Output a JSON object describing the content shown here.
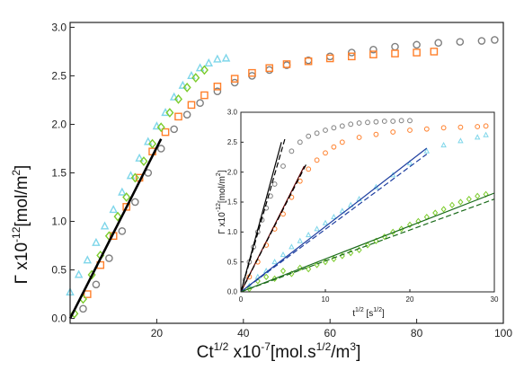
{
  "chart_data": {
    "main": {
      "type": "scatter",
      "xlim": [
        0,
        100
      ],
      "ylim": [
        -0.05,
        3.05
      ],
      "xticks": [
        20,
        40,
        60,
        80,
        100
      ],
      "yticks": [
        0.0,
        0.5,
        1.0,
        1.5,
        2.0,
        2.5,
        3.0
      ],
      "xlabel": {
        "base": "Ct",
        "sup1": "1/2",
        "mid": " x10",
        "sup2": "-7",
        "tail": "[mol.s",
        "sup3": "1/2",
        "end": "/m",
        "sup4": "3",
        "close": "]"
      },
      "ylabel": {
        "base": "Γ x10",
        "sup1": "-12",
        "mid": "[mol/m",
        "sup2": "2",
        "close": "]"
      },
      "series": [
        {
          "color": "#7f7f7f",
          "marker": "circle",
          "x": [
            3,
            6,
            9,
            12,
            15,
            18,
            21,
            24,
            27,
            30,
            34,
            38,
            42,
            46,
            50,
            55,
            60,
            65,
            70,
            75,
            80,
            85,
            90,
            95,
            98
          ],
          "y": [
            0.1,
            0.35,
            0.62,
            0.9,
            1.2,
            1.5,
            1.75,
            1.95,
            2.1,
            2.22,
            2.34,
            2.43,
            2.5,
            2.56,
            2.61,
            2.66,
            2.7,
            2.74,
            2.77,
            2.8,
            2.82,
            2.84,
            2.85,
            2.86,
            2.87
          ]
        },
        {
          "color": "#ff7f2a",
          "marker": "square",
          "x": [
            4,
            7,
            10,
            13,
            16,
            19,
            22,
            25,
            28,
            31,
            34,
            38,
            42,
            46,
            50,
            55,
            60,
            65,
            70,
            75,
            80,
            84
          ],
          "y": [
            0.25,
            0.55,
            0.85,
            1.15,
            1.45,
            1.72,
            1.92,
            2.08,
            2.2,
            2.3,
            2.39,
            2.47,
            2.53,
            2.58,
            2.62,
            2.65,
            2.68,
            2.7,
            2.72,
            2.73,
            2.74,
            2.75
          ]
        },
        {
          "color": "#7fd6ea",
          "marker": "triangle",
          "x": [
            0,
            2,
            4,
            6,
            8,
            10,
            12,
            14,
            16,
            18,
            20,
            22,
            24,
            26,
            28,
            30,
            32,
            34,
            36
          ],
          "y": [
            0.27,
            0.45,
            0.6,
            0.78,
            0.95,
            1.12,
            1.3,
            1.47,
            1.65,
            1.82,
            1.98,
            2.12,
            2.28,
            2.4,
            2.5,
            2.58,
            2.63,
            2.67,
            2.68
          ]
        },
        {
          "color": "#7ccc2c",
          "marker": "diamond",
          "x": [
            1,
            3,
            5,
            7,
            9,
            11,
            13,
            15,
            17,
            19,
            21,
            23,
            25,
            27,
            29,
            31
          ],
          "y": [
            0.05,
            0.2,
            0.45,
            0.65,
            0.85,
            1.05,
            1.25,
            1.45,
            1.62,
            1.8,
            1.97,
            2.12,
            2.26,
            2.38,
            2.48,
            2.56
          ]
        }
      ],
      "fit_line": {
        "color": "#000000",
        "x": [
          0,
          21
        ],
        "y": [
          0.0,
          1.85
        ]
      }
    },
    "inset": {
      "type": "scatter",
      "xlim": [
        0,
        30
      ],
      "ylim": [
        0,
        3.0
      ],
      "xticks": [
        0,
        10,
        20,
        30
      ],
      "yticks": [
        0.0,
        0.5,
        1.0,
        1.5,
        2.0,
        2.5,
        3.0
      ],
      "xlabel": {
        "base": "t",
        "sup1": "1/2",
        "mid": " [s",
        "sup2": "1/2",
        "close": "]"
      },
      "ylabel": {
        "base": "Γ x10",
        "sup1": "-12",
        "mid": "[mol/m",
        "sup2": "2",
        "close": "]"
      },
      "series": [
        {
          "color": "#7f7f7f",
          "marker": "circle",
          "x": [
            0.5,
            1,
            1.5,
            2,
            2.5,
            3,
            3.5,
            4,
            5,
            6,
            7,
            8,
            9,
            10,
            11,
            12,
            13,
            14,
            15,
            16,
            17,
            18,
            19,
            20
          ],
          "y": [
            0.2,
            0.5,
            0.75,
            1.0,
            1.2,
            1.4,
            1.6,
            1.8,
            2.1,
            2.35,
            2.5,
            2.6,
            2.65,
            2.7,
            2.74,
            2.77,
            2.8,
            2.82,
            2.83,
            2.84,
            2.85,
            2.85,
            2.86,
            2.86
          ]
        },
        {
          "color": "#ff7f2a",
          "marker": "circle",
          "x": [
            1,
            2,
            3,
            4,
            5,
            6,
            7,
            8,
            9,
            10,
            11,
            12,
            14,
            16,
            18,
            20,
            22,
            24,
            26,
            28,
            29
          ],
          "y": [
            0.25,
            0.5,
            0.78,
            1.05,
            1.3,
            1.58,
            1.85,
            2.05,
            2.2,
            2.32,
            2.42,
            2.5,
            2.58,
            2.63,
            2.67,
            2.7,
            2.72,
            2.74,
            2.75,
            2.76,
            2.77
          ]
        },
        {
          "color": "#7fd6ea",
          "marker": "triangle",
          "x": [
            1,
            2,
            3,
            4,
            5,
            6,
            7,
            8,
            9,
            10,
            11,
            12,
            13,
            14,
            16,
            18,
            20,
            22,
            24,
            26,
            28,
            29
          ],
          "y": [
            0.1,
            0.25,
            0.35,
            0.5,
            0.62,
            0.75,
            0.85,
            0.95,
            1.05,
            1.15,
            1.25,
            1.35,
            1.45,
            1.55,
            1.75,
            1.95,
            2.15,
            2.35,
            2.45,
            2.52,
            2.58,
            2.62
          ]
        },
        {
          "color": "#7ccc2c",
          "marker": "diamond",
          "x": [
            1,
            2,
            3,
            4,
            5,
            6,
            7,
            8,
            9,
            10,
            11,
            12,
            13,
            14,
            15,
            16,
            17,
            18,
            19,
            20,
            21,
            22,
            23,
            24,
            25,
            26,
            27,
            28,
            29
          ],
          "y": [
            0.05,
            0.18,
            0.25,
            0.22,
            0.35,
            0.3,
            0.4,
            0.38,
            0.45,
            0.5,
            0.55,
            0.6,
            0.65,
            0.7,
            0.78,
            0.85,
            0.92,
            1.0,
            1.05,
            1.12,
            1.18,
            1.25,
            1.32,
            1.38,
            1.45,
            1.5,
            1.55,
            1.6,
            1.63
          ]
        }
      ],
      "fit_lines": [
        {
          "color": "#000000",
          "dash": false,
          "x": [
            0,
            4.8
          ],
          "y": [
            0,
            2.5
          ]
        },
        {
          "color": "#000000",
          "dash": true,
          "x": [
            0,
            5.2
          ],
          "y": [
            0,
            2.55
          ]
        },
        {
          "color": "#5a0000",
          "dash": false,
          "x": [
            0,
            7.5
          ],
          "y": [
            0,
            2.1
          ]
        },
        {
          "color": "#000000",
          "dash": true,
          "x": [
            0,
            7.8
          ],
          "y": [
            0,
            2.15
          ]
        },
        {
          "color": "#1f3fa0",
          "dash": false,
          "x": [
            0,
            22
          ],
          "y": [
            0,
            2.4
          ]
        },
        {
          "color": "#1f3fa0",
          "dash": true,
          "x": [
            0,
            22
          ],
          "y": [
            0,
            2.3
          ]
        },
        {
          "color": "#1a6b1a",
          "dash": false,
          "x": [
            0,
            30
          ],
          "y": [
            0,
            1.65
          ]
        },
        {
          "color": "#1a6b1a",
          "dash": true,
          "x": [
            0,
            30
          ],
          "y": [
            0,
            1.55
          ]
        }
      ]
    }
  }
}
